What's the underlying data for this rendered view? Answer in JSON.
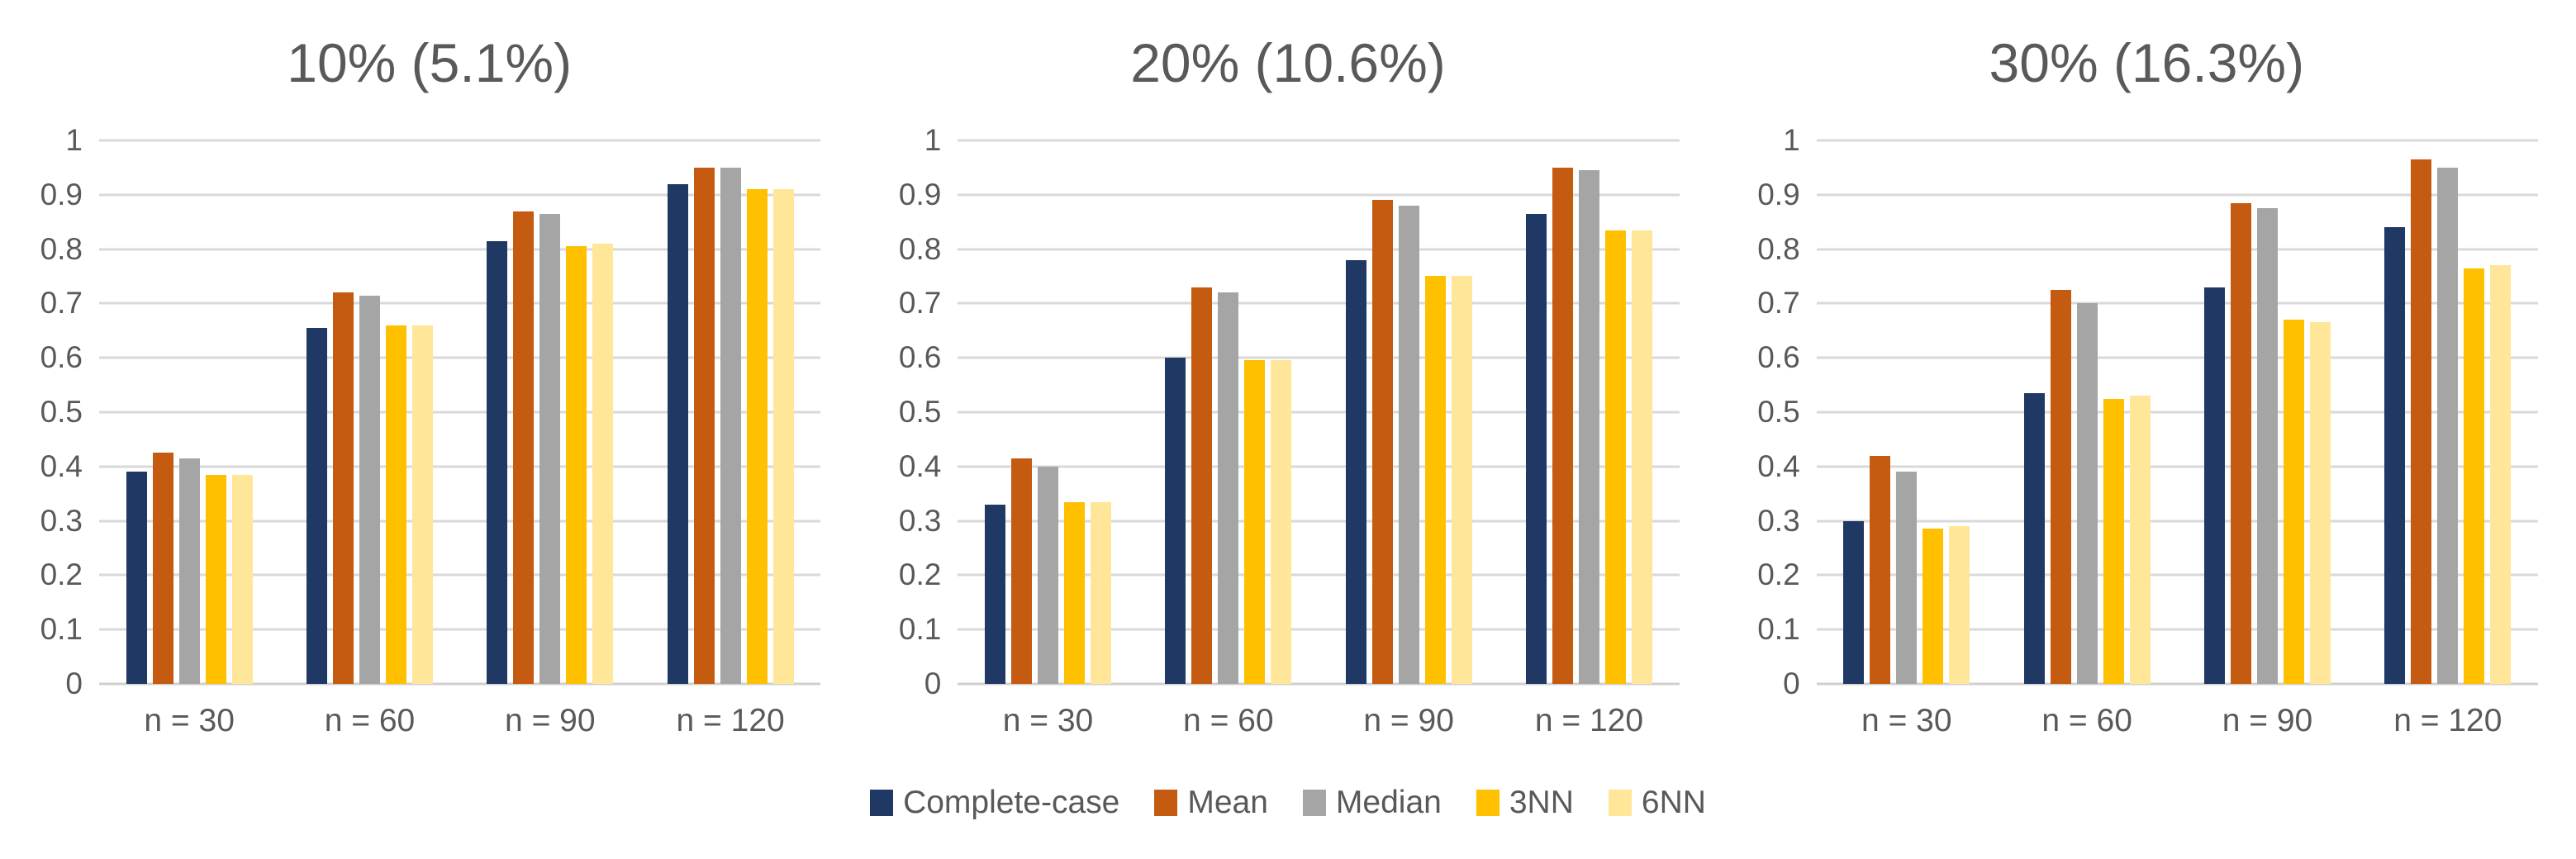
{
  "colors": {
    "background": "#FFFFFF",
    "title_text": "#595959",
    "axis_text": "#595959",
    "legend_text": "#595959",
    "gridline": "#D9D9D9",
    "baseline": "#CFCFCF"
  },
  "chart_data": {
    "type": "bar",
    "layout": "three clustered-bar panels side by side, shared legend centered at bottom",
    "grid": true,
    "legend_position": "bottom-center",
    "ylim": [
      0,
      1
    ],
    "ytick_labels": [
      "1",
      "0.9",
      "0.8",
      "0.7",
      "0.6",
      "0.5",
      "0.4",
      "0.3",
      "0.2",
      "0.1",
      "0"
    ],
    "categories": [
      "n = 30",
      "n = 60",
      "n = 90",
      "n = 120"
    ],
    "legend": [
      "Complete-case",
      "Mean",
      "Median",
      "3NN",
      "6NN"
    ],
    "series_colors": {
      "Complete-case": "#203864",
      "Mean": "#C55A11",
      "Median": "#A5A5A5",
      "3NN": "#FFC000",
      "6NN": "#FFE699"
    },
    "panels": [
      {
        "title": "10% (5.1%)",
        "series": [
          {
            "name": "Complete-case",
            "values": [
              0.39,
              0.655,
              0.815,
              0.92
            ]
          },
          {
            "name": "Mean",
            "values": [
              0.425,
              0.72,
              0.87,
              0.95
            ]
          },
          {
            "name": "Median",
            "values": [
              0.415,
              0.715,
              0.865,
              0.95
            ]
          },
          {
            "name": "3NN",
            "values": [
              0.385,
              0.66,
              0.805,
              0.91
            ]
          },
          {
            "name": "6NN",
            "values": [
              0.385,
              0.66,
              0.81,
              0.91
            ]
          }
        ]
      },
      {
        "title": "20% (10.6%)",
        "series": [
          {
            "name": "Complete-case",
            "values": [
              0.33,
              0.6,
              0.78,
              0.865
            ]
          },
          {
            "name": "Mean",
            "values": [
              0.415,
              0.73,
              0.89,
              0.95
            ]
          },
          {
            "name": "Median",
            "values": [
              0.4,
              0.72,
              0.88,
              0.945
            ]
          },
          {
            "name": "3NN",
            "values": [
              0.335,
              0.595,
              0.75,
              0.835
            ]
          },
          {
            "name": "6NN",
            "values": [
              0.335,
              0.595,
              0.75,
              0.835
            ]
          }
        ]
      },
      {
        "title": "30% (16.3%)",
        "series": [
          {
            "name": "Complete-case",
            "values": [
              0.3,
              0.535,
              0.73,
              0.84
            ]
          },
          {
            "name": "Mean",
            "values": [
              0.42,
              0.725,
              0.885,
              0.965
            ]
          },
          {
            "name": "Median",
            "values": [
              0.39,
              0.7,
              0.875,
              0.95
            ]
          },
          {
            "name": "3NN",
            "values": [
              0.285,
              0.525,
              0.67,
              0.765
            ]
          },
          {
            "name": "6NN",
            "values": [
              0.29,
              0.53,
              0.665,
              0.77
            ]
          }
        ]
      }
    ]
  }
}
